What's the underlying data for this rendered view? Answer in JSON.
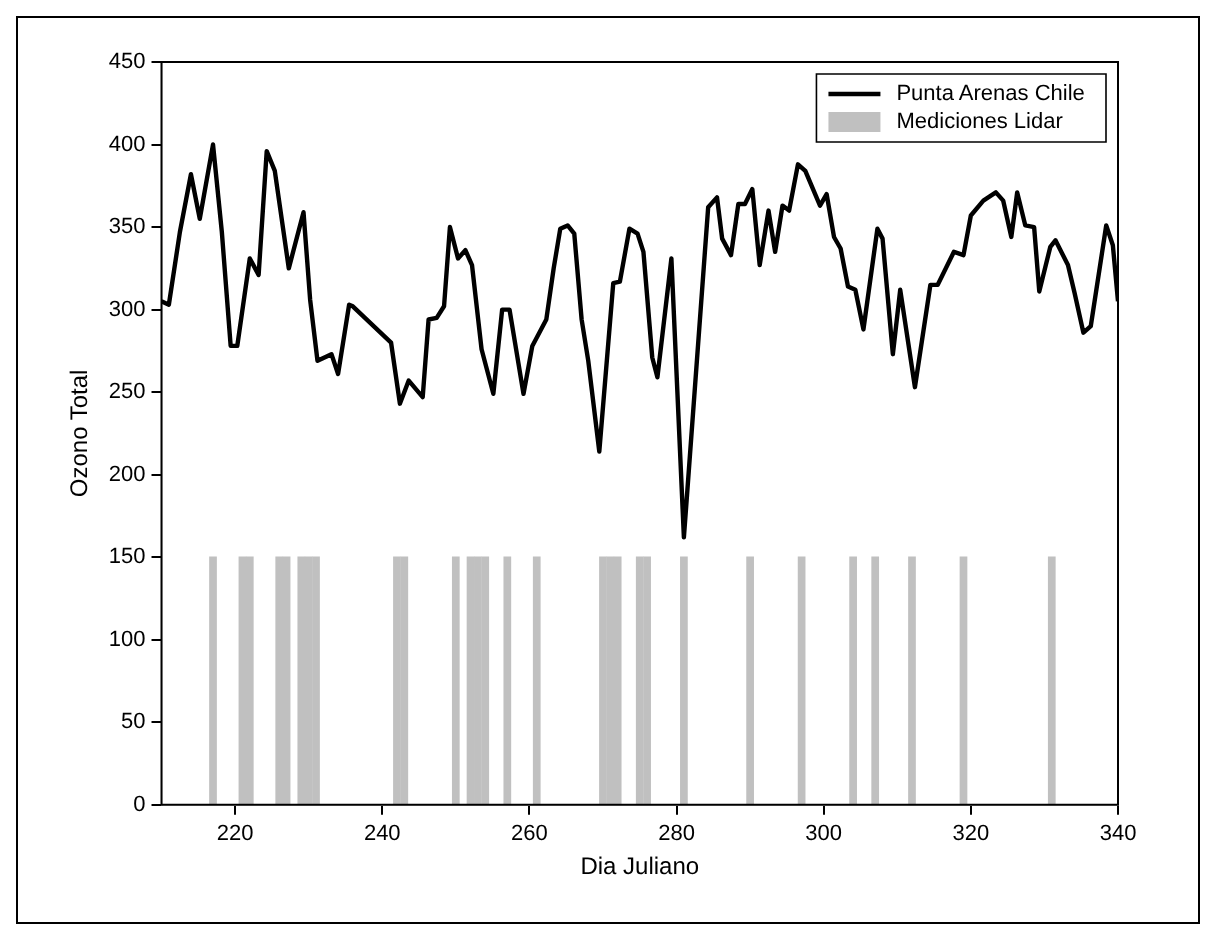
{
  "chart_data": {
    "type": "line",
    "xlabel": "Dia Juliano",
    "ylabel": "Ozono Total",
    "xlim": [
      210,
      340
    ],
    "xticks": [
      220,
      240,
      260,
      280,
      300,
      320,
      340
    ],
    "ylim": [
      0,
      450
    ],
    "yticks": [
      0,
      50,
      100,
      150,
      200,
      250,
      300,
      350,
      400,
      450
    ],
    "grid": false,
    "legend": "top right",
    "line_style": "solid",
    "marker": "none",
    "series": [
      {
        "name": "Punta Arenas Chile",
        "color": "#000000",
        "x": [
          210,
          211,
          212.5,
          214,
          215.2,
          217,
          218.2,
          219.4,
          220.3,
          222,
          223.2,
          224.3,
          225.4,
          227.3,
          229.3,
          230.2,
          231.2,
          233.1,
          234,
          235.5,
          236,
          241.2,
          242.4,
          243.6,
          245.5,
          246.3,
          247.4,
          248.4,
          249.2,
          250.3,
          251.3,
          252.2,
          253.5,
          255.1,
          256.3,
          257.3,
          259.2,
          260.4,
          262.3,
          263.3,
          264.2,
          265.2,
          266.1,
          267.1,
          268,
          269.5,
          271.4,
          272.3,
          273.6,
          274.7,
          275.5,
          276.7,
          277.4,
          279.3,
          281,
          284.3,
          285.5,
          286.2,
          287.4,
          288.4,
          289.3,
          290.3,
          291.3,
          292.5,
          293.4,
          294.4,
          295.3,
          296.5,
          297.5,
          299.5,
          300.4,
          301.4,
          302.3,
          303.3,
          304.3,
          305.4,
          307.3,
          308,
          309.4,
          310.4,
          312.4,
          314.5,
          315.5,
          317.7,
          319,
          320,
          321.7,
          323.4,
          324.4,
          325.5,
          326.3,
          327.4,
          328.6,
          329.3,
          330.8,
          331.5,
          333.2,
          334.1,
          335.3,
          336.3,
          338.4,
          339.3,
          340
        ],
        "values": [
          305,
          303,
          347,
          382,
          355,
          400,
          347,
          278,
          278,
          331,
          321,
          396,
          384,
          325,
          359,
          306,
          269,
          273,
          261,
          303,
          302,
          280,
          243,
          257,
          247,
          294,
          295,
          302,
          350,
          331,
          336,
          327,
          276,
          249,
          300,
          300,
          249,
          278,
          294,
          325,
          349,
          351,
          346,
          294,
          269,
          214,
          316,
          317,
          349,
          346,
          335,
          271,
          259,
          331,
          162,
          362,
          368,
          343,
          333,
          364,
          364,
          373,
          327,
          360,
          335,
          363,
          360,
          388,
          384,
          363,
          370,
          344,
          337,
          314,
          312,
          288,
          349,
          343,
          273,
          312,
          253,
          315,
          315,
          335,
          333,
          357,
          366,
          371,
          366,
          344,
          371,
          351,
          350,
          311,
          338,
          342,
          327,
          310,
          286,
          290,
          351,
          339,
          305
        ]
      },
      {
        "name": "Mediciones Lidar",
        "type": "bar",
        "color": "#c0c0c0",
        "x": [
          217,
          221,
          222,
          226,
          227,
          229,
          230,
          231,
          242,
          243,
          250,
          252,
          253,
          254,
          257,
          261,
          270,
          271,
          272,
          275,
          276,
          281,
          290,
          297,
          304,
          307,
          312,
          319,
          331
        ],
        "values": [
          150,
          150,
          150,
          150,
          150,
          150,
          150,
          150,
          150,
          150,
          150,
          150,
          150,
          150,
          150,
          150,
          150,
          150,
          150,
          150,
          150,
          150,
          150,
          150,
          150,
          150,
          150,
          150,
          150
        ]
      }
    ]
  }
}
